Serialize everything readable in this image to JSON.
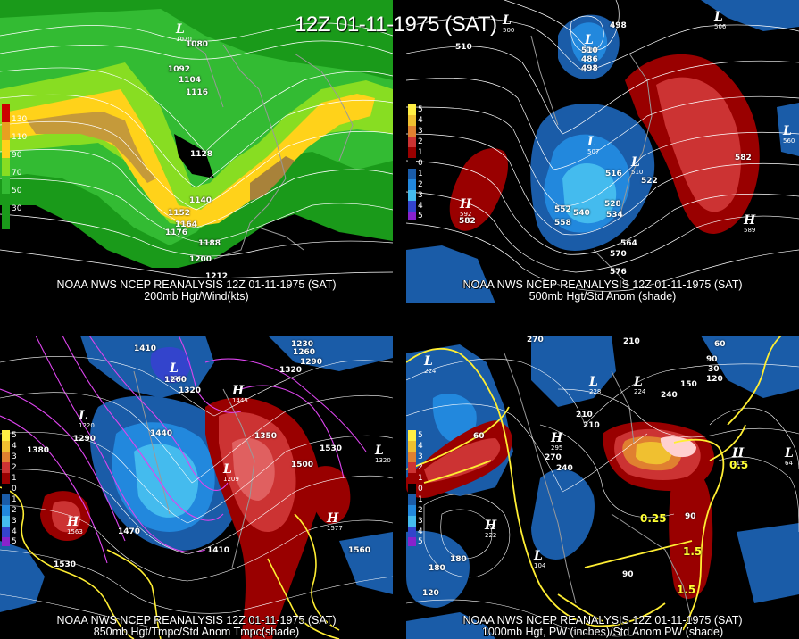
{
  "main_title": "12Z 01-11-1975 (SAT)",
  "panels": {
    "p200": {
      "caption1": "NOAA NWS NCEP REANALYSIS 12Z 01-11-1975 (SAT)",
      "caption2": "200mb Hgt/Wind(kts)",
      "scale": [
        {
          "label": "130",
          "color": "#cc0000"
        },
        {
          "label": "110",
          "color": "#e8a020"
        },
        {
          "label": "90",
          "color": "#ffd21a"
        },
        {
          "label": "70",
          "color": "#88dd22"
        },
        {
          "label": "50",
          "color": "#33bb33"
        },
        {
          "label": "30",
          "color": "#1a9a1a"
        }
      ],
      "contour_labels": [
        "1080",
        "1092",
        "1104",
        "1116",
        "1128",
        "1140",
        "1152",
        "1164",
        "1176",
        "1188",
        "1200",
        "1212"
      ],
      "highs_lows": [
        {
          "kind": "L",
          "value": "1070"
        }
      ]
    },
    "p500": {
      "caption1": "NOAA NWS NCEP REANALYSIS 12Z 01-11-1975 (SAT)",
      "caption2": "500mb Hgt/Std Anom (shade)",
      "scale": [
        {
          "label": "5",
          "color": "#ffee44"
        },
        {
          "label": "4",
          "color": "#f0c030"
        },
        {
          "label": "3",
          "color": "#e08030"
        },
        {
          "label": "2",
          "color": "#cc3333"
        },
        {
          "label": "1",
          "color": "#990000"
        },
        {
          "label": "0",
          "color": "#000000"
        },
        {
          "label": "1",
          "color": "#1a5ca8"
        },
        {
          "label": "2",
          "color": "#2288dd"
        },
        {
          "label": "3",
          "color": "#44bbee"
        },
        {
          "label": "4",
          "color": "#3344cc"
        },
        {
          "label": "5",
          "color": "#8822cc"
        }
      ],
      "contour_labels": [
        "510",
        "498",
        "510",
        "486",
        "498",
        "516",
        "528",
        "534",
        "540",
        "552",
        "558",
        "564",
        "570",
        "576",
        "582",
        "522",
        "582"
      ],
      "highs_lows": [
        {
          "kind": "L",
          "value": "500"
        },
        {
          "kind": "L",
          "value": "480"
        },
        {
          "kind": "L",
          "value": "507"
        },
        {
          "kind": "L",
          "value": "510"
        },
        {
          "kind": "L",
          "value": "506"
        },
        {
          "kind": "L",
          "value": "560"
        },
        {
          "kind": "H",
          "value": "592"
        },
        {
          "kind": "H",
          "value": "589"
        }
      ]
    },
    "p850": {
      "caption1": "NOAA NWS NCEP REANALYSIS 12Z 01-11-1975 (SAT)",
      "caption2": "850mb Hgt/Tmpc/Std Anom Tmpc(shade)",
      "scale": [
        {
          "label": "5",
          "color": "#ffee44"
        },
        {
          "label": "4",
          "color": "#f0c030"
        },
        {
          "label": "3",
          "color": "#e08030"
        },
        {
          "label": "2",
          "color": "#cc3333"
        },
        {
          "label": "1",
          "color": "#990000"
        },
        {
          "label": "0",
          "color": "#000000"
        },
        {
          "label": "1",
          "color": "#1a5ca8"
        },
        {
          "label": "2",
          "color": "#2288dd"
        },
        {
          "label": "3",
          "color": "#44bbee"
        },
        {
          "label": "4",
          "color": "#3344cc"
        },
        {
          "label": "5",
          "color": "#8822cc"
        }
      ],
      "contour_labels": [
        "1410",
        "1230",
        "1260",
        "1290",
        "1320",
        "1440",
        "1380",
        "1350",
        "1530",
        "1500",
        "1470",
        "1410",
        "1560",
        "1530",
        "1290",
        "1260",
        "1320"
      ],
      "highs_lows": [
        {
          "kind": "L",
          "value": "1220"
        },
        {
          "kind": "L",
          "value": "1260"
        },
        {
          "kind": "L",
          "value": "1230"
        },
        {
          "kind": "L",
          "value": "1320"
        },
        {
          "kind": "L",
          "value": "1209"
        },
        {
          "kind": "H",
          "value": "1445"
        },
        {
          "kind": "H",
          "value": "1577"
        },
        {
          "kind": "H",
          "value": "1563"
        }
      ]
    },
    "p1000": {
      "caption1": "NOAA NWS NCEP REANALYSIS 12Z 01-11-1975 (SAT)",
      "caption2": "1000mb Hgt, PW (inches)/Std Anom PW (shade)",
      "scale": [
        {
          "label": "5",
          "color": "#ffee44"
        },
        {
          "label": "4",
          "color": "#f0c030"
        },
        {
          "label": "3",
          "color": "#e08030"
        },
        {
          "label": "2",
          "color": "#cc3333"
        },
        {
          "label": "1",
          "color": "#990000"
        },
        {
          "label": "0",
          "color": "#000000"
        },
        {
          "label": "1",
          "color": "#1a5ca8"
        },
        {
          "label": "2",
          "color": "#2288dd"
        },
        {
          "label": "3",
          "color": "#44bbee"
        },
        {
          "label": "4",
          "color": "#3344cc"
        },
        {
          "label": "5",
          "color": "#8822cc"
        }
      ],
      "contour_labels": [
        "270",
        "210",
        "180",
        "150",
        "120",
        "90",
        "60",
        "30",
        "240",
        "210",
        "240",
        "270",
        "210",
        "180",
        "90",
        "1.5",
        "1.5",
        "0.5",
        "0.25",
        "60",
        "90",
        "120"
      ],
      "highs_lows": [
        {
          "kind": "L",
          "value": "224"
        },
        {
          "kind": "L",
          "value": "224"
        },
        {
          "kind": "L",
          "value": "228"
        },
        {
          "kind": "L",
          "value": "104"
        },
        {
          "kind": "L",
          "value": "64"
        },
        {
          "kind": "H",
          "value": "295"
        },
        {
          "kind": "H",
          "value": "222"
        },
        {
          "kind": "H",
          "value": "215"
        }
      ]
    }
  }
}
